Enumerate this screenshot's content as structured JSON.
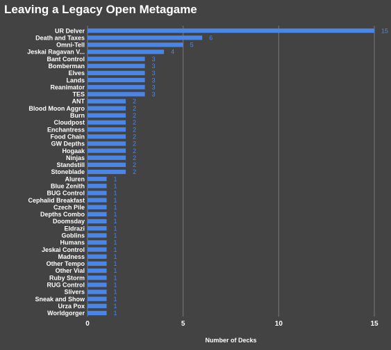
{
  "colors": {
    "background": "#434343",
    "bar": "#4a86e8",
    "value_label": "#4a86e8",
    "grid": "#7a7a7a",
    "text": "#ffffff"
  },
  "chart_data": {
    "type": "bar",
    "orientation": "horizontal",
    "title": "Leaving a Legacy Open Metagame",
    "xlabel": "Number of Decks",
    "ylabel": "",
    "xlim": [
      0,
      15
    ],
    "xticks": [
      0,
      5,
      10,
      15
    ],
    "grid": true,
    "data_labels": true,
    "categories": [
      "UR Delver",
      "Death and Taxes",
      "Omni-Tell",
      "Jeskai Ragavan V...",
      "Bant Control",
      "Bomberman",
      "Elves",
      "Lands",
      "Reanimator",
      "TES",
      "ANT",
      "Blood Moon Aggro",
      "Burn",
      "Cloudpost",
      "Enchantress",
      "Food Chain",
      "GW Depths",
      "Hogaak",
      "Ninjas",
      "Standstill",
      "Stoneblade",
      "Aluren",
      "Blue Zenith",
      "BUG Control",
      "Cephalid Breakfast",
      "Czech Pile",
      "Depths Combo",
      "Doomsday",
      "Eldrazi",
      "Goblins",
      "Humans",
      "Jeskai Control",
      "Madness",
      "Other Tempo",
      "Other Vial",
      "Ruby Storm",
      "RUG Control",
      "Slivers",
      "Sneak and Show",
      "Urza Pox",
      "Worldgorger"
    ],
    "values": [
      15,
      6,
      5,
      4,
      3,
      3,
      3,
      3,
      3,
      3,
      2,
      2,
      2,
      2,
      2,
      2,
      2,
      2,
      2,
      2,
      2,
      1,
      1,
      1,
      1,
      1,
      1,
      1,
      1,
      1,
      1,
      1,
      1,
      1,
      1,
      1,
      1,
      1,
      1,
      1,
      1
    ]
  }
}
